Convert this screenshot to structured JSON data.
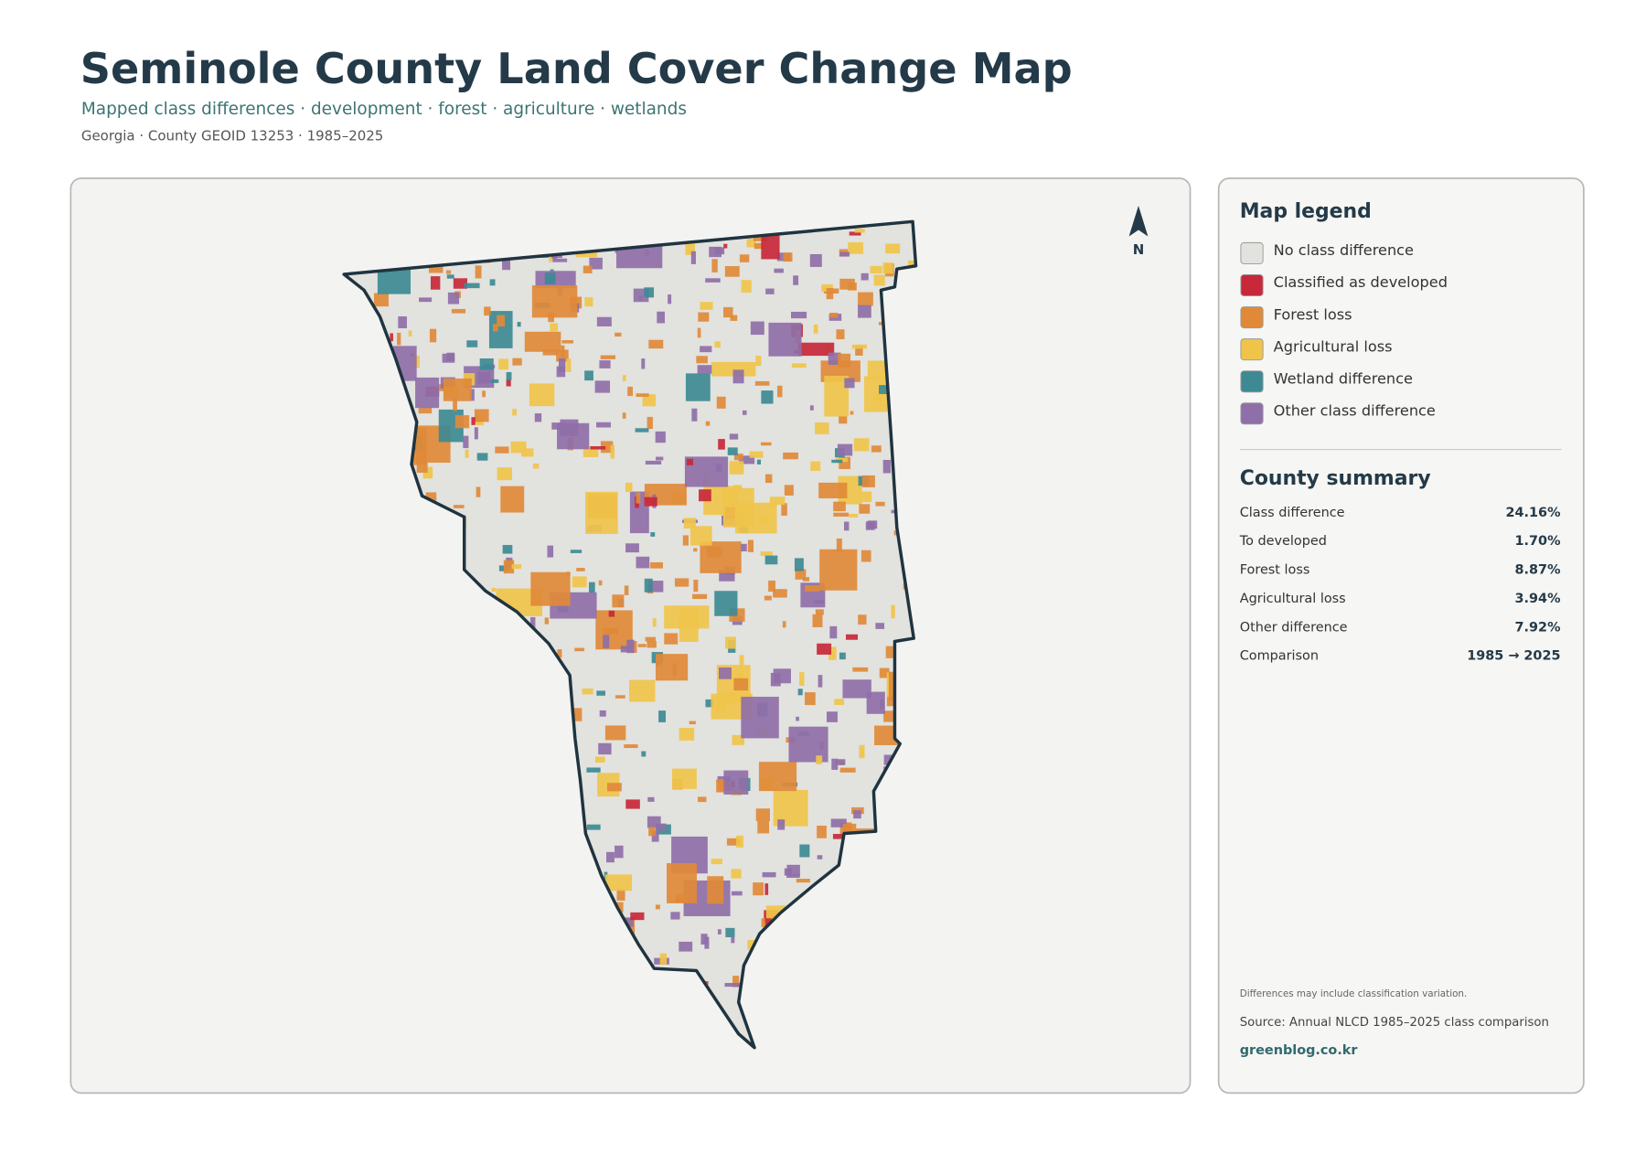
{
  "header": {
    "title": "Seminole County Land Cover Change Map",
    "subtitle": "Mapped class differences · development · forest · agriculture · wetlands",
    "meta": "Georgia · County GEOID 13253 · 1985–2025"
  },
  "map": {
    "north_label": "N"
  },
  "legend": {
    "title": "Map legend",
    "items": [
      {
        "label": "No class difference",
        "color": "#e2e2de"
      },
      {
        "label": "Classified as developed",
        "color": "#c8283a"
      },
      {
        "label": "Forest loss",
        "color": "#e08a38"
      },
      {
        "label": "Agricultural loss",
        "color": "#f0c44a"
      },
      {
        "label": "Wetland difference",
        "color": "#3d8a94"
      },
      {
        "label": "Other class difference",
        "color": "#8f6fa8"
      }
    ]
  },
  "summary": {
    "title": "County summary",
    "rows": [
      [
        "Class difference",
        "24.16%"
      ],
      [
        "To developed",
        "1.70%"
      ],
      [
        "Forest loss",
        "8.87%"
      ],
      [
        "Agricultural loss",
        "3.94%"
      ],
      [
        "Other difference",
        "7.92%"
      ],
      [
        "Comparison",
        "1985 → 2025"
      ]
    ]
  },
  "footer": {
    "note": "Differences may include classification variation.",
    "source": "Source: Annual NLCD 1985–2025 class comparison",
    "site": "greenblog.co.kr"
  }
}
